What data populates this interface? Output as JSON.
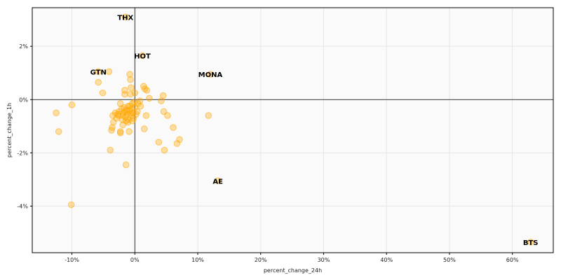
{
  "chart_data": {
    "type": "scatter",
    "xlabel": "percent_change_24h",
    "ylabel": "percent_change_1h",
    "xlim": [
      -16.3,
      66.5
    ],
    "ylim": [
      -5.75,
      3.45
    ],
    "x_ticks": [
      -10,
      0,
      10,
      20,
      30,
      40,
      50,
      60
    ],
    "x_tick_labels": [
      "-10%",
      "0%",
      "10%",
      "20%",
      "30%",
      "40%",
      "50%",
      "60%"
    ],
    "y_ticks": [
      2,
      0,
      -2,
      -4
    ],
    "y_tick_labels": [
      "2%",
      "0%",
      "-2%",
      "-4%"
    ],
    "grid": true,
    "zero_lines": true,
    "colors": {
      "marker": "#ffa500",
      "background": "#fafafa",
      "grid": "#e6e6e6",
      "axis": "#000000"
    },
    "points": [
      {
        "x": -1.5,
        "y": 3.1
      },
      {
        "x": 1.2,
        "y": 1.65
      },
      {
        "x": -5.8,
        "y": 1.05
      },
      {
        "x": 12.0,
        "y": 0.95
      },
      {
        "x": 13.2,
        "y": -3.05
      },
      {
        "x": 62.9,
        "y": -5.35
      },
      {
        "x": -12.5,
        "y": -0.5
      },
      {
        "x": -10.0,
        "y": -0.2
      },
      {
        "x": -12.1,
        "y": -1.2
      },
      {
        "x": -10.1,
        "y": -3.95
      },
      {
        "x": -4.1,
        "y": 1.05
      },
      {
        "x": -5.8,
        "y": 0.65
      },
      {
        "x": -5.1,
        "y": 0.25
      },
      {
        "x": -0.8,
        "y": 0.95
      },
      {
        "x": -0.7,
        "y": 0.75
      },
      {
        "x": -0.6,
        "y": 0.45
      },
      {
        "x": -1.6,
        "y": 0.35
      },
      {
        "x": -1.6,
        "y": 0.2
      },
      {
        "x": -0.7,
        "y": 0.2
      },
      {
        "x": 0.0,
        "y": 0.25
      },
      {
        "x": 1.4,
        "y": 0.5
      },
      {
        "x": 1.6,
        "y": 0.4
      },
      {
        "x": 1.9,
        "y": 0.35
      },
      {
        "x": 2.3,
        "y": 0.05
      },
      {
        "x": 4.5,
        "y": 0.15
      },
      {
        "x": 4.2,
        "y": -0.05
      },
      {
        "x": 0.8,
        "y": -0.05
      },
      {
        "x": 0.9,
        "y": -0.25
      },
      {
        "x": 4.6,
        "y": -0.45
      },
      {
        "x": 5.2,
        "y": -0.6
      },
      {
        "x": 1.8,
        "y": -0.6
      },
      {
        "x": 1.5,
        "y": -1.1
      },
      {
        "x": 6.1,
        "y": -1.05
      },
      {
        "x": 3.8,
        "y": -1.6
      },
      {
        "x": 4.7,
        "y": -1.9
      },
      {
        "x": 7.1,
        "y": -1.5
      },
      {
        "x": 6.7,
        "y": -1.65
      },
      {
        "x": 11.7,
        "y": -0.6
      },
      {
        "x": -3.9,
        "y": -1.9
      },
      {
        "x": -1.4,
        "y": -2.45
      },
      {
        "x": -0.9,
        "y": -1.2
      },
      {
        "x": -2.3,
        "y": -1.2
      },
      {
        "x": -2.3,
        "y": -1.25
      },
      {
        "x": -3.7,
        "y": -1.15
      },
      {
        "x": -3.6,
        "y": -1.05
      },
      {
        "x": -3.4,
        "y": -0.85
      },
      {
        "x": -3.5,
        "y": -0.6
      },
      {
        "x": -3.1,
        "y": -0.5
      },
      {
        "x": -2.9,
        "y": -0.7
      },
      {
        "x": -2.7,
        "y": -0.55
      },
      {
        "x": -2.5,
        "y": -0.45
      },
      {
        "x": -2.3,
        "y": -0.15
      },
      {
        "x": -2.1,
        "y": -0.35
      },
      {
        "x": -2.0,
        "y": -0.75
      },
      {
        "x": -1.9,
        "y": -0.95
      },
      {
        "x": -1.8,
        "y": -0.5
      },
      {
        "x": -1.7,
        "y": -0.3
      },
      {
        "x": -1.6,
        "y": -0.45
      },
      {
        "x": -1.5,
        "y": -0.65
      },
      {
        "x": -1.4,
        "y": -0.8
      },
      {
        "x": -1.3,
        "y": -0.4
      },
      {
        "x": -1.2,
        "y": -0.55
      },
      {
        "x": -1.1,
        "y": -0.85
      },
      {
        "x": -1.0,
        "y": -0.75
      },
      {
        "x": -0.9,
        "y": -0.4
      },
      {
        "x": -0.8,
        "y": -0.25
      },
      {
        "x": -0.7,
        "y": -0.5
      },
      {
        "x": -0.6,
        "y": -0.6
      },
      {
        "x": -0.5,
        "y": -0.35
      },
      {
        "x": -0.4,
        "y": -0.15
      },
      {
        "x": -0.3,
        "y": -0.5
      },
      {
        "x": -0.2,
        "y": -0.7
      },
      {
        "x": -0.1,
        "y": -0.1
      },
      {
        "x": 0.0,
        "y": -0.3
      },
      {
        "x": 0.2,
        "y": -0.55
      },
      {
        "x": 0.4,
        "y": -0.45
      },
      {
        "x": 0.5,
        "y": -0.15
      },
      {
        "x": -2.6,
        "y": -0.6
      },
      {
        "x": -1.9,
        "y": -0.6
      },
      {
        "x": -1.1,
        "y": -0.25
      },
      {
        "x": -0.4,
        "y": -0.8
      }
    ],
    "annotations": [
      {
        "label": "THX",
        "x": -1.5,
        "y": 3.1
      },
      {
        "label": "HOT",
        "x": 1.2,
        "y": 1.65
      },
      {
        "label": "GTN",
        "x": -5.8,
        "y": 1.05
      },
      {
        "label": "MONA",
        "x": 12.0,
        "y": 0.95
      },
      {
        "label": "AE",
        "x": 13.2,
        "y": -3.05
      },
      {
        "label": "BTS",
        "x": 62.9,
        "y": -5.35
      }
    ]
  }
}
